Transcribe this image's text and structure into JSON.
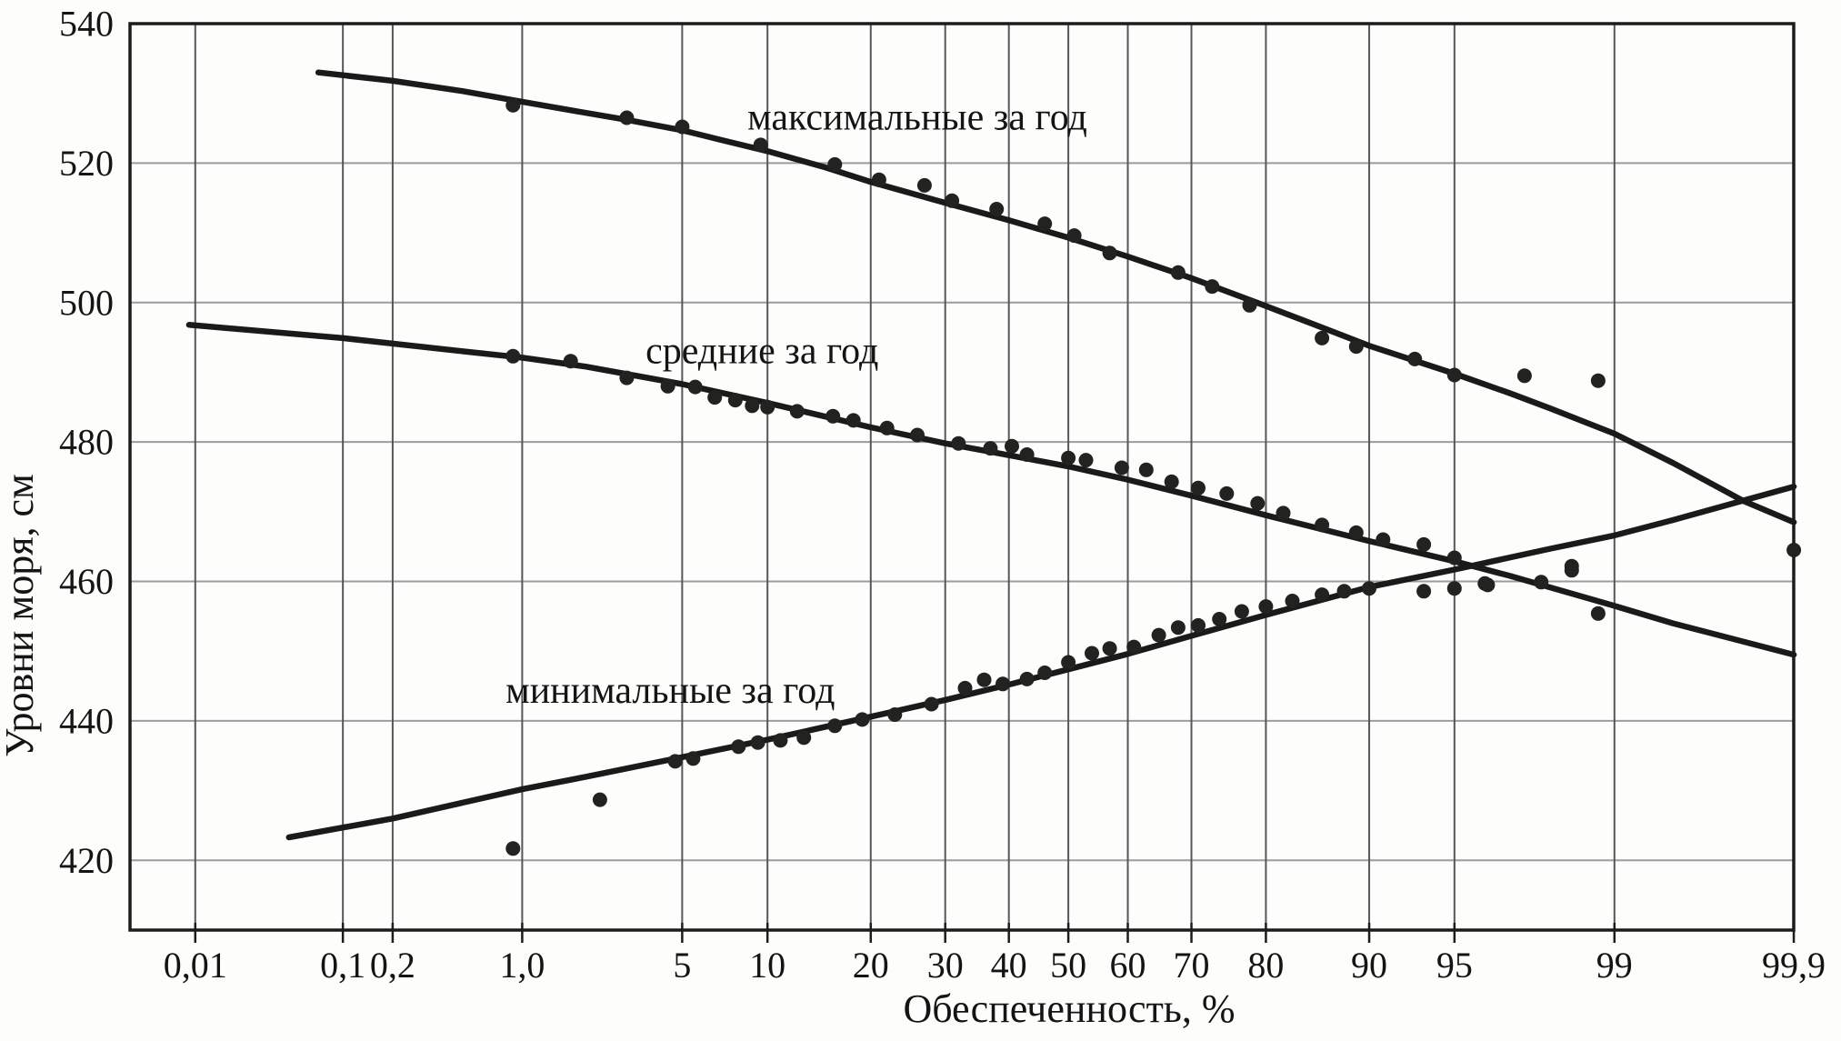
{
  "chart_data": {
    "type": "scatter",
    "title": "",
    "xlabel": "Обеспеченность, %",
    "ylabel": "Уровни моря, см",
    "x_scale": "normal-probability",
    "grid": true,
    "ylim": [
      410,
      540
    ],
    "xlim_z": [
      -3.997,
      3.09
    ],
    "y_ticks": [
      {
        "v": 540,
        "label": "540"
      },
      {
        "v": 520,
        "label": "520"
      },
      {
        "v": 500,
        "label": "500"
      },
      {
        "v": 480,
        "label": "480"
      },
      {
        "v": 460,
        "label": "460"
      },
      {
        "v": 440,
        "label": "440"
      },
      {
        "v": 420,
        "label": "420"
      }
    ],
    "x_ticks": [
      {
        "p": 0.01,
        "label": "0,01"
      },
      {
        "p": 0.1,
        "label": "0,1"
      },
      {
        "p": 0.2,
        "label": "0,2"
      },
      {
        "p": 1,
        "label": "1,0"
      },
      {
        "p": 5,
        "label": "5"
      },
      {
        "p": 10,
        "label": "10"
      },
      {
        "p": 20,
        "label": "20"
      },
      {
        "p": 30,
        "label": "30"
      },
      {
        "p": 40,
        "label": "40"
      },
      {
        "p": 50,
        "label": "50"
      },
      {
        "p": 60,
        "label": "60"
      },
      {
        "p": 70,
        "label": "70"
      },
      {
        "p": 80,
        "label": "80"
      },
      {
        "p": 90,
        "label": "90"
      },
      {
        "p": 95,
        "label": "95"
      },
      {
        "p": 99,
        "label": "99"
      },
      {
        "p": 99.9,
        "label": "99,9"
      }
    ],
    "series": [
      {
        "name": "максимальные за год",
        "label_anchor": {
          "p": 26,
          "v": 526.5
        },
        "line": [
          [
            0.07,
            533
          ],
          [
            0.2,
            531.8
          ],
          [
            0.5,
            530.3
          ],
          [
            1,
            528.8
          ],
          [
            2,
            527.2
          ],
          [
            3,
            526.2
          ],
          [
            5,
            524.7
          ],
          [
            7,
            523.3
          ],
          [
            10,
            521.7
          ],
          [
            15,
            519.4
          ],
          [
            20,
            517.3
          ],
          [
            30,
            514.3
          ],
          [
            40,
            511.8
          ],
          [
            50,
            509.3
          ],
          [
            60,
            506.6
          ],
          [
            70,
            503.5
          ],
          [
            80,
            499.5
          ],
          [
            85,
            497.0
          ],
          [
            90,
            493.8
          ],
          [
            95,
            489.8
          ],
          [
            97,
            487.0
          ],
          [
            98,
            484.8
          ],
          [
            99,
            481.2
          ],
          [
            99.5,
            477.0
          ],
          [
            99.8,
            471.5
          ],
          [
            99.9,
            468.5
          ]
        ],
        "points": [
          [
            0.9,
            528.3
          ],
          [
            3,
            526.5
          ],
          [
            5,
            525.2
          ],
          [
            9.5,
            522.6
          ],
          [
            16,
            519.8
          ],
          [
            21,
            517.6
          ],
          [
            27,
            516.8
          ],
          [
            31,
            514.6
          ],
          [
            38,
            513.4
          ],
          [
            46,
            511.3
          ],
          [
            51,
            509.6
          ],
          [
            57,
            507.1
          ],
          [
            68,
            504.3
          ],
          [
            73,
            502.3
          ],
          [
            78,
            499.6
          ],
          [
            86,
            494.9
          ],
          [
            89,
            493.7
          ],
          [
            93,
            491.9
          ],
          [
            95,
            489.6
          ],
          [
            97.4,
            489.5
          ],
          [
            98.8,
            488.8
          ],
          [
            99.9,
            464.5
          ]
        ]
      },
      {
        "name": "средние за год",
        "label_anchor": {
          "p": 9.6,
          "v": 493
        },
        "line": [
          [
            0.009,
            496.8
          ],
          [
            0.1,
            494.9
          ],
          [
            0.5,
            493.0
          ],
          [
            1,
            492.1
          ],
          [
            2,
            490.8
          ],
          [
            5,
            488.3
          ],
          [
            10,
            485.6
          ],
          [
            20,
            482.1
          ],
          [
            30,
            479.8
          ],
          [
            40,
            478.1
          ],
          [
            50,
            476.5
          ],
          [
            60,
            474.6
          ],
          [
            70,
            472.3
          ],
          [
            80,
            469.5
          ],
          [
            90,
            465.8
          ],
          [
            95,
            462.9
          ],
          [
            97,
            460.8
          ],
          [
            99,
            456.5
          ],
          [
            99.5,
            454.0
          ],
          [
            99.9,
            449.5
          ]
        ],
        "points": [
          [
            0.9,
            492.3
          ],
          [
            1.7,
            491.6
          ],
          [
            3,
            489.2
          ],
          [
            4.4,
            488.0
          ],
          [
            5.6,
            487.9
          ],
          [
            6.6,
            486.4
          ],
          [
            7.8,
            486.0
          ],
          [
            8.9,
            485.2
          ],
          [
            10,
            485.0
          ],
          [
            12.4,
            484.4
          ],
          [
            15.8,
            483.7
          ],
          [
            18,
            483.1
          ],
          [
            22,
            482.0
          ],
          [
            26,
            481.0
          ],
          [
            32,
            479.8
          ],
          [
            37,
            479.1
          ],
          [
            40.5,
            479.4
          ],
          [
            43,
            478.2
          ],
          [
            50,
            477.7
          ],
          [
            53,
            477.4
          ],
          [
            59,
            476.3
          ],
          [
            63,
            476.0
          ],
          [
            67,
            474.3
          ],
          [
            71,
            473.4
          ],
          [
            75,
            472.6
          ],
          [
            79,
            471.2
          ],
          [
            82,
            469.8
          ],
          [
            86,
            468.1
          ],
          [
            89,
            467.0
          ],
          [
            91,
            466.0
          ],
          [
            93.5,
            465.3
          ],
          [
            95,
            463.4
          ],
          [
            96.2,
            459.7
          ],
          [
            97.8,
            459.9
          ],
          [
            98.4,
            461.6
          ],
          [
            98.8,
            455.4
          ]
        ]
      },
      {
        "name": "минимальные за год",
        "label_anchor": {
          "p": 4.5,
          "v": 444.3
        },
        "line": [
          [
            0.045,
            423.3
          ],
          [
            0.2,
            426.0
          ],
          [
            1,
            430.2
          ],
          [
            2,
            432.0
          ],
          [
            5,
            434.8
          ],
          [
            10,
            437.3
          ],
          [
            20,
            440.6
          ],
          [
            30,
            443.0
          ],
          [
            40,
            445.2
          ],
          [
            50,
            447.4
          ],
          [
            60,
            449.6
          ],
          [
            70,
            452.2
          ],
          [
            80,
            455.2
          ],
          [
            90,
            459.2
          ],
          [
            95,
            461.7
          ],
          [
            98,
            464.7
          ],
          [
            99,
            466.6
          ],
          [
            99.5,
            468.8
          ],
          [
            99.9,
            473.6
          ]
        ],
        "points": [
          [
            0.9,
            421.7
          ],
          [
            2.3,
            428.7
          ],
          [
            4.7,
            434.2
          ],
          [
            5.5,
            434.6
          ],
          [
            8,
            436.3
          ],
          [
            9.3,
            436.9
          ],
          [
            11,
            437.2
          ],
          [
            13,
            437.6
          ],
          [
            16,
            439.3
          ],
          [
            19,
            440.2
          ],
          [
            23,
            440.9
          ],
          [
            28,
            442.4
          ],
          [
            33,
            444.7
          ],
          [
            36,
            445.9
          ],
          [
            39,
            445.3
          ],
          [
            43,
            446.0
          ],
          [
            46,
            446.9
          ],
          [
            50,
            448.4
          ],
          [
            54,
            449.7
          ],
          [
            57,
            450.4
          ],
          [
            61,
            450.6
          ],
          [
            65,
            452.3
          ],
          [
            68,
            453.4
          ],
          [
            71,
            453.7
          ],
          [
            74,
            454.6
          ],
          [
            77,
            455.7
          ],
          [
            80,
            456.4
          ],
          [
            83,
            457.2
          ],
          [
            86,
            458.1
          ],
          [
            88,
            458.6
          ],
          [
            90,
            459.0
          ],
          [
            93.5,
            458.6
          ],
          [
            95,
            459.0
          ],
          [
            96.3,
            459.5
          ],
          [
            98.4,
            462.2
          ]
        ]
      }
    ],
    "colors": {
      "curve": "#1a1a1a",
      "dot": "#222220",
      "grid_horizontal": "#9b9ba1",
      "grid_vertical": "#56565c",
      "border": "#1c1c1c",
      "text": "#141414",
      "background": "#fdfdfb"
    }
  }
}
